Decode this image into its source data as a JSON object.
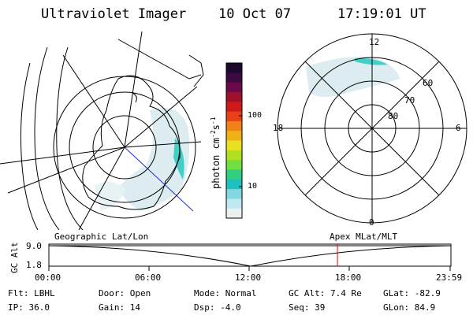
{
  "header": {
    "title": "Ultraviolet Imager",
    "date": "10 Oct 07",
    "time": "17:19:01 UT"
  },
  "colorbar": {
    "unit_label": "photon cm",
    "unit_exp1": "-2",
    "unit_mid": "s",
    "unit_exp2": "-1",
    "ticks": [
      "100",
      "10"
    ],
    "colors": [
      "#1a0a2e",
      "#3a0a40",
      "#6a0a4a",
      "#a0102a",
      "#d01818",
      "#e84018",
      "#f08018",
      "#f0b018",
      "#e8e020",
      "#b0e020",
      "#70e040",
      "#30d080",
      "#20c0c0",
      "#80d8e0",
      "#c0e8f0",
      "#e8f0f0"
    ]
  },
  "polar_right": {
    "labels": {
      "top": "12",
      "bottom": "0",
      "left": "18",
      "right": "6"
    },
    "lat_labels": [
      "60",
      "70",
      "80"
    ]
  },
  "orbit_plot": {
    "ylabel_top": "GC",
    "ylabel_bottom": "Alt",
    "y_max": "9.0",
    "y_min": "1.8",
    "left_caption": "Geographic Lat/Lon",
    "right_caption": "Apex  MLat/MLT",
    "x_ticks": [
      "00:00",
      "06:00",
      "12:00",
      "18:00",
      "23:59"
    ],
    "marker_color": "#e00000"
  },
  "info": {
    "flt": "Flt: LBHL",
    "ip": "IP: 36.0",
    "door": "Door: Open",
    "gain": "Gain: 14",
    "mode": "Mode: Normal",
    "dsp": "Dsp:    -4.0",
    "gc_alt": "GC Alt: 7.4 Re",
    "seq": "Seq: 39",
    "glat": "GLat: -82.9",
    "glon": "GLon:  84.9"
  }
}
